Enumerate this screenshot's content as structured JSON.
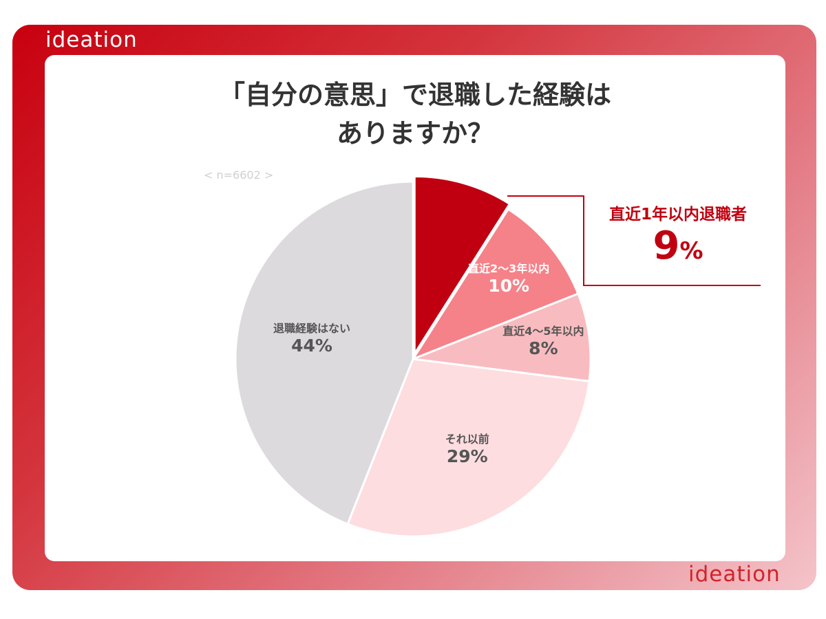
{
  "brand": {
    "logo_text": "ideation"
  },
  "title": {
    "line1": "「自分の意思」で退職した経験は",
    "line2": "ありますか？"
  },
  "sample_size": "< n=6602 >",
  "callout": {
    "label": "直近1年以内退職者",
    "value": "9",
    "unit": "%"
  },
  "colors": {
    "frame": "#c8000f",
    "slice_1yr": "#c00010",
    "slice_2_3yr": "#f58289",
    "slice_4_5yr": "#f8bcc0",
    "slice_before": "#fddde0",
    "slice_none": "#dcdadd"
  },
  "chart_data": {
    "type": "pie",
    "title": "「自分の意思」で退職した経験はありますか？",
    "n": 6602,
    "start_angle_deg": 0,
    "direction": "clockwise",
    "slices": [
      {
        "label": "直近1年以内",
        "value": 9,
        "value_label": "",
        "color": "#c00010",
        "exploded": true
      },
      {
        "label": "直近2〜3年以内",
        "value": 10,
        "value_label": "10%",
        "color": "#f58289"
      },
      {
        "label": "直近4〜5年以内",
        "value": 8,
        "value_label": "8%",
        "color": "#f8bcc0"
      },
      {
        "label": "それ以前",
        "value": 29,
        "value_label": "29%",
        "color": "#fddde0"
      },
      {
        "label": "退職経験はない",
        "value": 44,
        "value_label": "44%",
        "color": "#dcdadd"
      }
    ]
  }
}
